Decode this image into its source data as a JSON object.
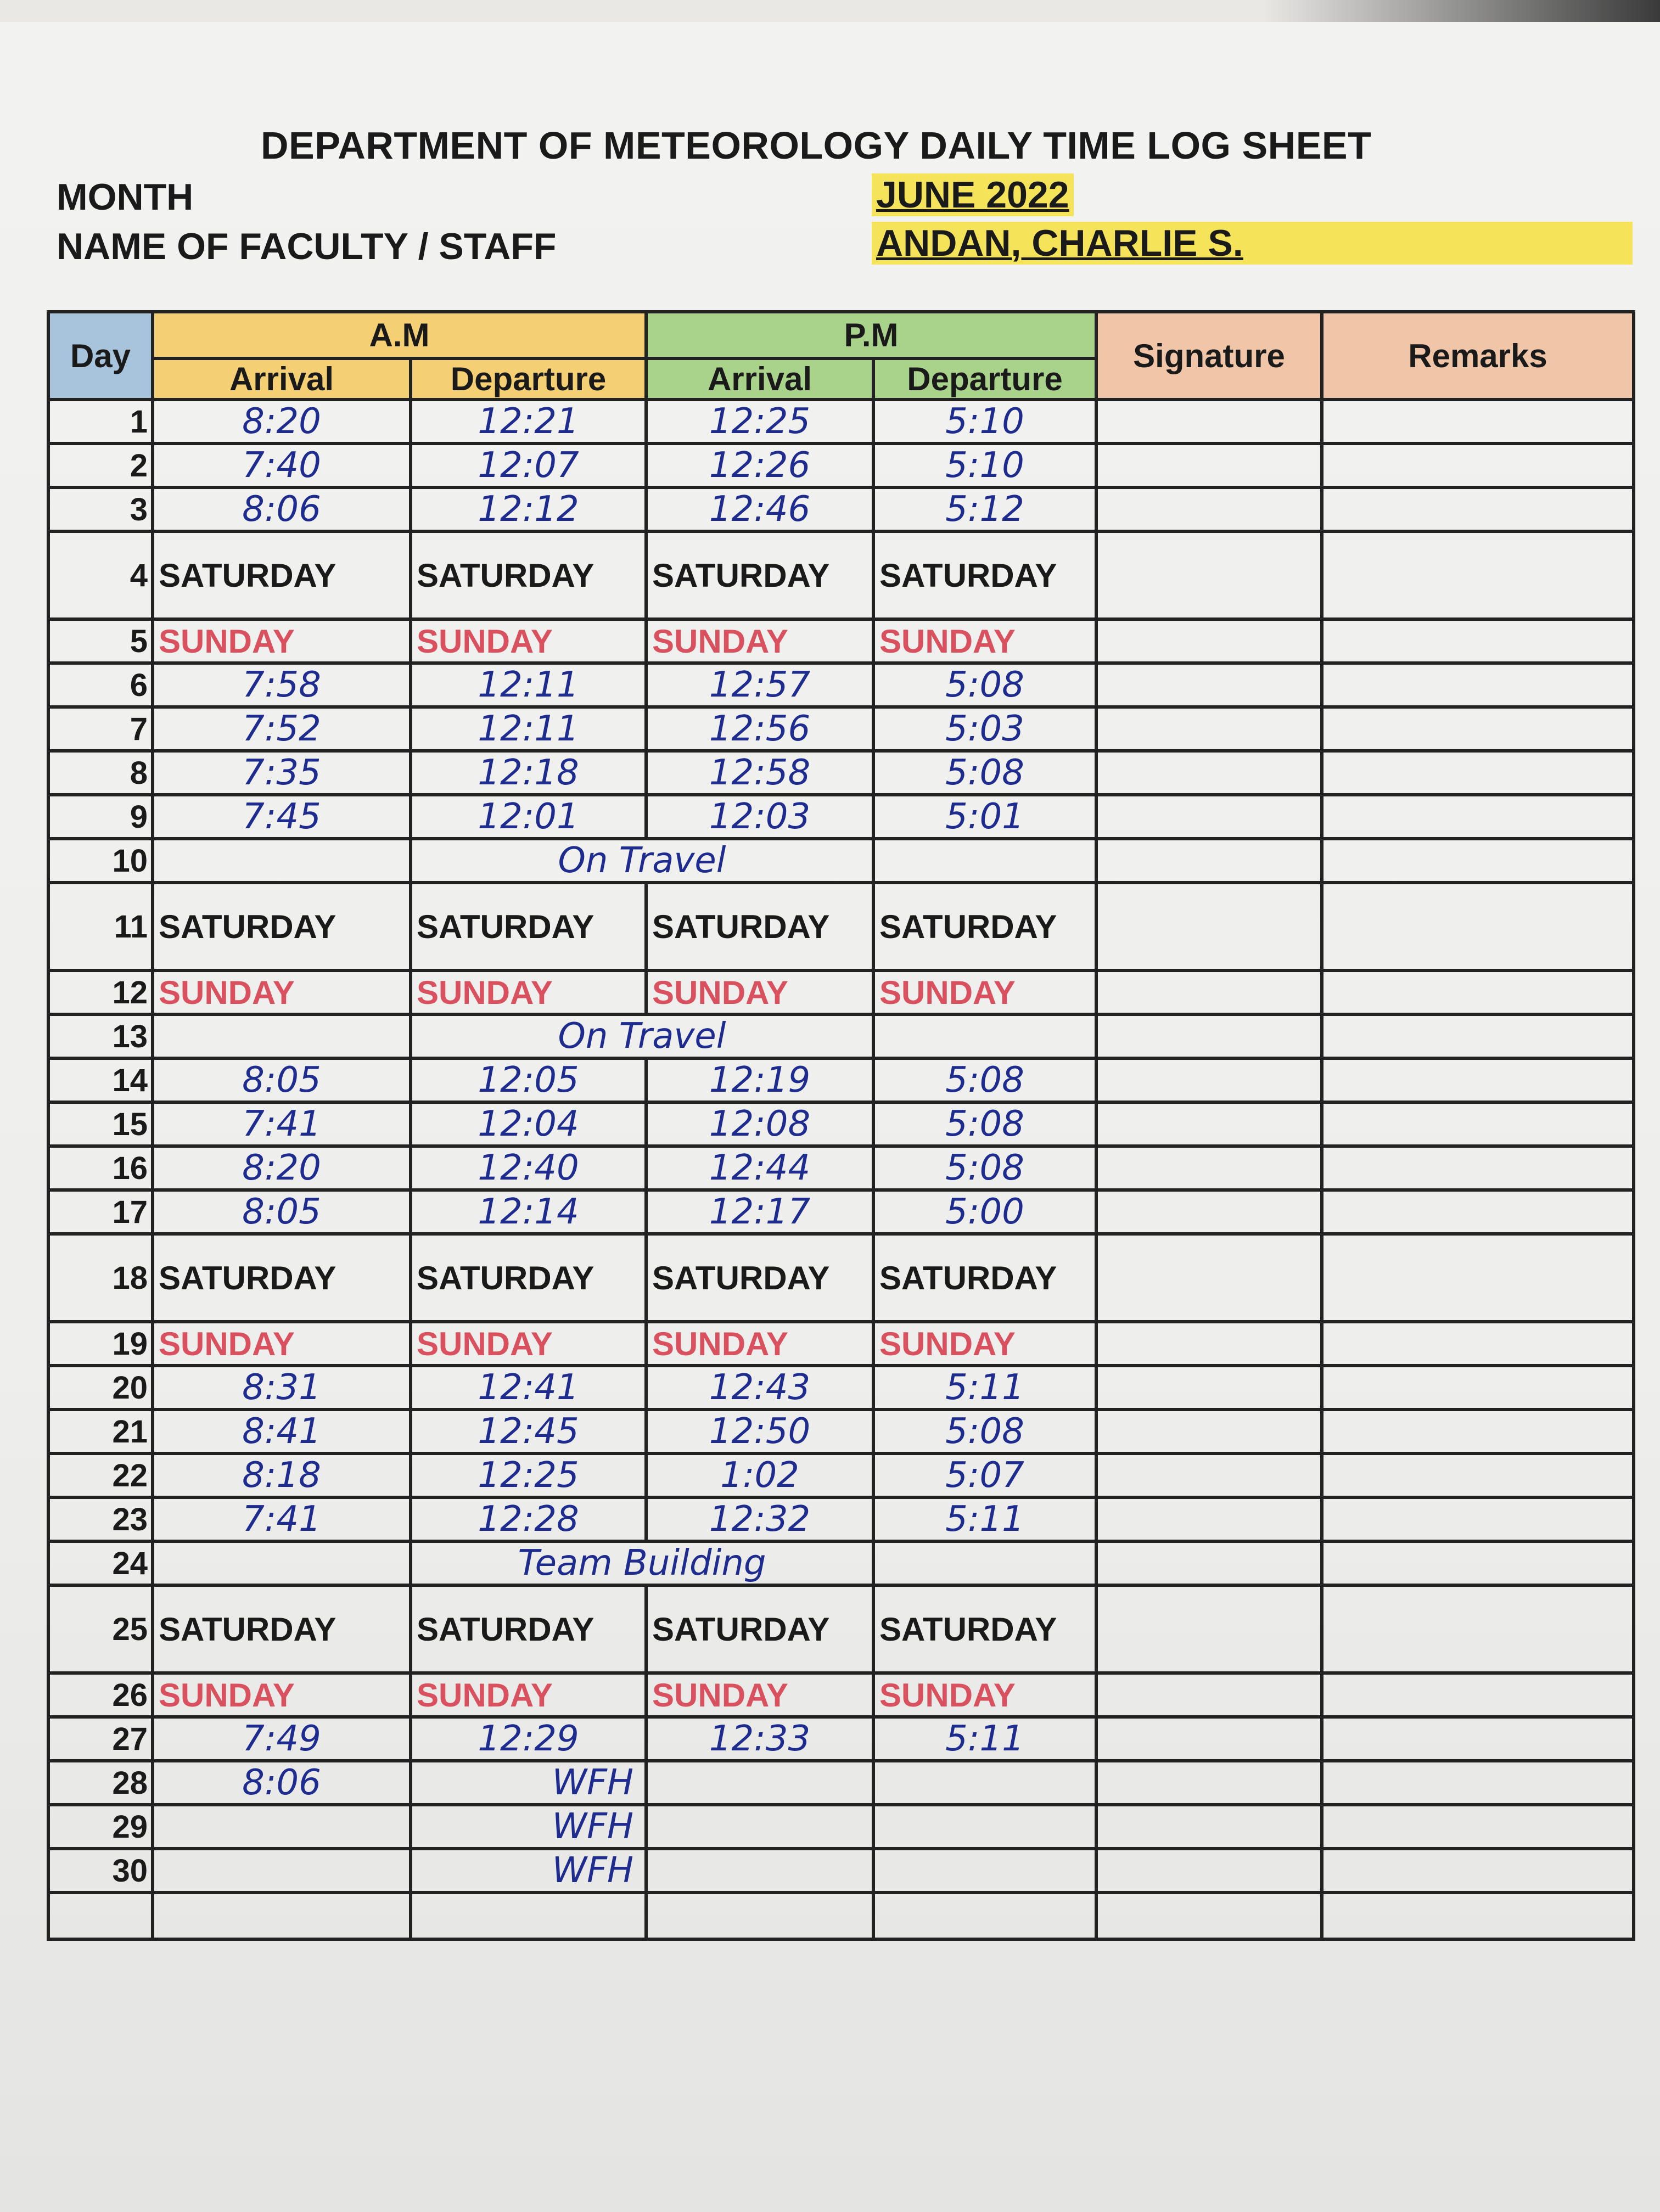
{
  "header": {
    "title": "DEPARTMENT OF METEOROLOGY DAILY TIME LOG SHEET",
    "month_label": "MONTH",
    "month_value": "JUNE 2022",
    "name_label": "NAME OF FACULTY / STAFF",
    "name_value": "ANDAN, CHARLIE S."
  },
  "table": {
    "col_day": "Day",
    "col_am": "A.M",
    "col_pm": "P.M",
    "col_arrival": "Arrival",
    "col_departure": "Departure",
    "col_signature": "Signature",
    "col_remarks": "Remarks",
    "rows": [
      {
        "day": "1",
        "type": "time",
        "am_arrival": "8:20",
        "am_departure": "12:21",
        "pm_arrival": "12:25",
        "pm_departure": "5:10"
      },
      {
        "day": "2",
        "type": "time",
        "am_arrival": "7:40",
        "am_departure": "12:07",
        "pm_arrival": "12:26",
        "pm_departure": "5:10"
      },
      {
        "day": "3",
        "type": "time",
        "am_arrival": "8:06",
        "am_departure": "12:12",
        "pm_arrival": "12:46",
        "pm_departure": "5:12"
      },
      {
        "day": "4",
        "type": "saturday",
        "label": "SATURDAY"
      },
      {
        "day": "5",
        "type": "sunday",
        "label": "SUNDAY"
      },
      {
        "day": "6",
        "type": "time",
        "am_arrival": "7:58",
        "am_departure": "12:11",
        "pm_arrival": "12:57",
        "pm_departure": "5:08"
      },
      {
        "day": "7",
        "type": "time",
        "am_arrival": "7:52",
        "am_departure": "12:11",
        "pm_arrival": "12:56",
        "pm_departure": "5:03"
      },
      {
        "day": "8",
        "type": "time",
        "am_arrival": "7:35",
        "am_departure": "12:18",
        "pm_arrival": "12:58",
        "pm_departure": "5:08"
      },
      {
        "day": "9",
        "type": "time",
        "am_arrival": "7:45",
        "am_departure": "12:01",
        "pm_arrival": "12:03",
        "pm_departure": "5:01"
      },
      {
        "day": "10",
        "type": "note",
        "note": "On Travel"
      },
      {
        "day": "11",
        "type": "saturday",
        "label": "SATURDAY"
      },
      {
        "day": "12",
        "type": "sunday",
        "label": "SUNDAY"
      },
      {
        "day": "13",
        "type": "note",
        "note": "On Travel"
      },
      {
        "day": "14",
        "type": "time",
        "am_arrival": "8:05",
        "am_departure": "12:05",
        "pm_arrival": "12:19",
        "pm_departure": "5:08"
      },
      {
        "day": "15",
        "type": "time",
        "am_arrival": "7:41",
        "am_departure": "12:04",
        "pm_arrival": "12:08",
        "pm_departure": "5:08"
      },
      {
        "day": "16",
        "type": "time",
        "am_arrival": "8:20",
        "am_departure": "12:40",
        "pm_arrival": "12:44",
        "pm_departure": "5:08"
      },
      {
        "day": "17",
        "type": "time",
        "am_arrival": "8:05",
        "am_departure": "12:14",
        "pm_arrival": "12:17",
        "pm_departure": "5:00"
      },
      {
        "day": "18",
        "type": "saturday",
        "label": "SATURDAY"
      },
      {
        "day": "19",
        "type": "sunday",
        "label": "SUNDAY"
      },
      {
        "day": "20",
        "type": "time",
        "am_arrival": "8:31",
        "am_departure": "12:41",
        "pm_arrival": "12:43",
        "pm_departure": "5:11"
      },
      {
        "day": "21",
        "type": "time",
        "am_arrival": "8:41",
        "am_departure": "12:45",
        "pm_arrival": "12:50",
        "pm_departure": "5:08"
      },
      {
        "day": "22",
        "type": "time",
        "am_arrival": "8:18",
        "am_departure": "12:25",
        "pm_arrival": "1:02",
        "pm_departure": "5:07"
      },
      {
        "day": "23",
        "type": "time",
        "am_arrival": "7:41",
        "am_departure": "12:28",
        "pm_arrival": "12:32",
        "pm_departure": "5:11"
      },
      {
        "day": "24",
        "type": "note",
        "note": "Team Building"
      },
      {
        "day": "25",
        "type": "saturday",
        "label": "SATURDAY"
      },
      {
        "day": "26",
        "type": "sunday",
        "label": "SUNDAY"
      },
      {
        "day": "27",
        "type": "time",
        "am_arrival": "7:49",
        "am_departure": "12:29",
        "pm_arrival": "12:33",
        "pm_departure": "5:11"
      },
      {
        "day": "28",
        "type": "wfh",
        "am_arrival": "8:06",
        "am_departure": "WFH"
      },
      {
        "day": "29",
        "type": "wfh",
        "am_arrival": "",
        "am_departure": "WFH"
      },
      {
        "day": "30",
        "type": "wfh",
        "am_arrival": "",
        "am_departure": "WFH"
      }
    ]
  }
}
